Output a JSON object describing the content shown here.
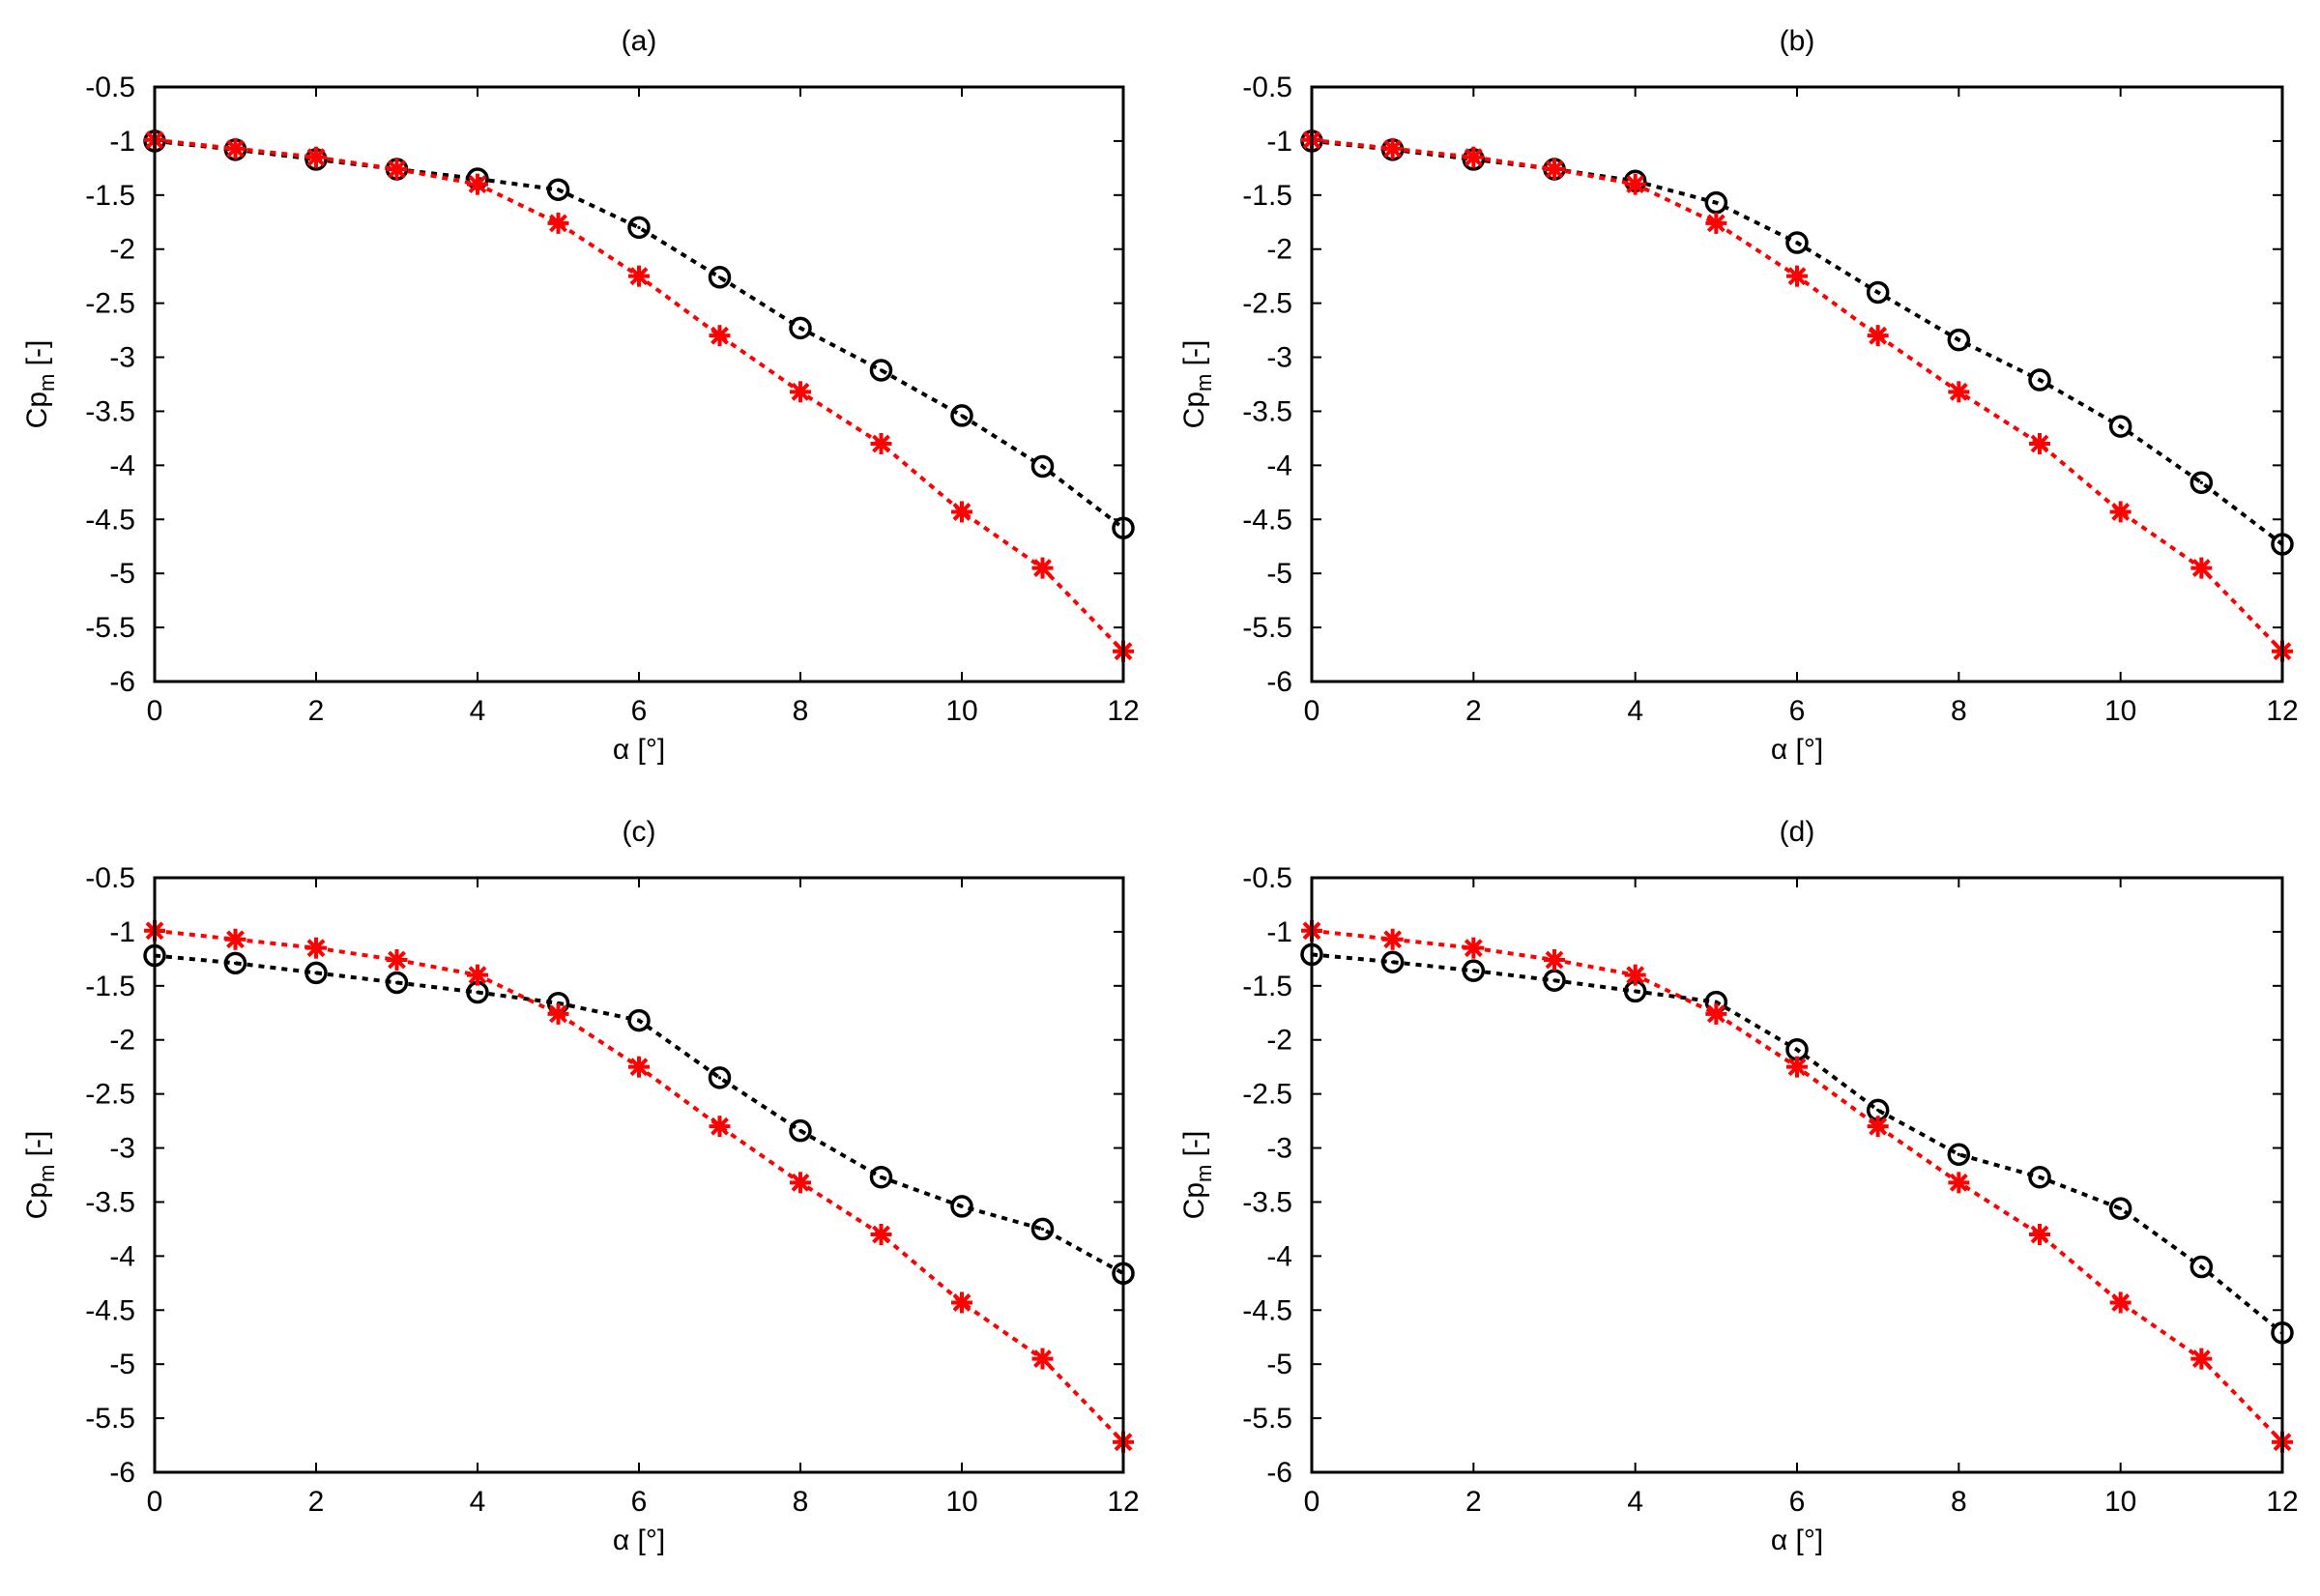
{
  "chart_data": [
    {
      "type": "line",
      "title": "(a)",
      "xlabel": "α [°]",
      "ylabel_main": "Cp",
      "ylabel_sub": "m",
      "ylabel_unit": " [-]",
      "xlim": [
        0,
        12
      ],
      "ylim": [
        -6,
        -0.5
      ],
      "xticks": [
        0,
        2,
        4,
        6,
        8,
        10,
        12
      ],
      "yticks": [
        -0.5,
        -1,
        -1.5,
        -2,
        -2.5,
        -3,
        -3.5,
        -4,
        -4.5,
        -5,
        -5.5,
        -6
      ],
      "grid": false,
      "x": [
        0,
        1,
        2,
        3,
        4,
        5,
        6,
        7,
        8,
        9,
        10,
        11,
        12
      ],
      "series": [
        {
          "marker": "circle",
          "color": "#000000",
          "values": [
            -1.0,
            -1.08,
            -1.17,
            -1.26,
            -1.35,
            -1.45,
            -1.8,
            -2.26,
            -2.73,
            -3.12,
            -3.54,
            -4.01,
            -4.58
          ]
        },
        {
          "marker": "star",
          "color": "#ff0000",
          "values": [
            -0.99,
            -1.07,
            -1.15,
            -1.26,
            -1.4,
            -1.76,
            -2.25,
            -2.8,
            -3.32,
            -3.8,
            -4.43,
            -4.95,
            -5.72
          ]
        }
      ]
    },
    {
      "type": "line",
      "title": "(b)",
      "xlabel": "α [°]",
      "ylabel_main": "Cp",
      "ylabel_sub": "m",
      "ylabel_unit": " [-]",
      "xlim": [
        0,
        12
      ],
      "ylim": [
        -6,
        -0.5
      ],
      "xticks": [
        0,
        2,
        4,
        6,
        8,
        10,
        12
      ],
      "yticks": [
        -0.5,
        -1,
        -1.5,
        -2,
        -2.5,
        -3,
        -3.5,
        -4,
        -4.5,
        -5,
        -5.5,
        -6
      ],
      "grid": false,
      "x": [
        0,
        1,
        2,
        3,
        4,
        5,
        6,
        7,
        8,
        9,
        10,
        11,
        12
      ],
      "series": [
        {
          "marker": "circle",
          "color": "#000000",
          "values": [
            -1.0,
            -1.08,
            -1.17,
            -1.26,
            -1.37,
            -1.57,
            -1.94,
            -2.4,
            -2.84,
            -3.21,
            -3.64,
            -4.16,
            -4.73
          ]
        },
        {
          "marker": "star",
          "color": "#ff0000",
          "values": [
            -0.99,
            -1.07,
            -1.15,
            -1.26,
            -1.4,
            -1.76,
            -2.25,
            -2.8,
            -3.32,
            -3.8,
            -4.43,
            -4.95,
            -5.72
          ]
        }
      ]
    },
    {
      "type": "line",
      "title": "(c)",
      "xlabel": "α [°]",
      "ylabel_main": "Cp",
      "ylabel_sub": "m",
      "ylabel_unit": " [-]",
      "xlim": [
        0,
        12
      ],
      "ylim": [
        -6,
        -0.5
      ],
      "xticks": [
        0,
        2,
        4,
        6,
        8,
        10,
        12
      ],
      "yticks": [
        -0.5,
        -1,
        -1.5,
        -2,
        -2.5,
        -3,
        -3.5,
        -4,
        -4.5,
        -5,
        -5.5,
        -6
      ],
      "grid": false,
      "x": [
        0,
        1,
        2,
        3,
        4,
        5,
        6,
        7,
        8,
        9,
        10,
        11,
        12
      ],
      "series": [
        {
          "marker": "circle",
          "color": "#000000",
          "values": [
            -1.22,
            -1.29,
            -1.38,
            -1.47,
            -1.56,
            -1.66,
            -1.82,
            -2.35,
            -2.84,
            -3.27,
            -3.54,
            -3.75,
            -4.16
          ]
        },
        {
          "marker": "star",
          "color": "#ff0000",
          "values": [
            -0.99,
            -1.07,
            -1.15,
            -1.26,
            -1.4,
            -1.76,
            -2.25,
            -2.8,
            -3.32,
            -3.8,
            -4.43,
            -4.95,
            -5.72
          ]
        }
      ]
    },
    {
      "type": "line",
      "title": "(d)",
      "xlabel": "α [°]",
      "ylabel_main": "Cp",
      "ylabel_sub": "m",
      "ylabel_unit": " [-]",
      "xlim": [
        0,
        12
      ],
      "ylim": [
        -6,
        -0.5
      ],
      "xticks": [
        0,
        2,
        4,
        6,
        8,
        10,
        12
      ],
      "yticks": [
        -0.5,
        -1,
        -1.5,
        -2,
        -2.5,
        -3,
        -3.5,
        -4,
        -4.5,
        -5,
        -5.5,
        -6
      ],
      "grid": false,
      "x": [
        0,
        1,
        2,
        3,
        4,
        5,
        6,
        7,
        8,
        9,
        10,
        11,
        12
      ],
      "series": [
        {
          "marker": "circle",
          "color": "#000000",
          "values": [
            -1.21,
            -1.28,
            -1.36,
            -1.45,
            -1.55,
            -1.65,
            -2.09,
            -2.65,
            -3.06,
            -3.27,
            -3.56,
            -4.1,
            -4.71
          ]
        },
        {
          "marker": "star",
          "color": "#ff0000",
          "values": [
            -0.99,
            -1.07,
            -1.15,
            -1.26,
            -1.4,
            -1.76,
            -2.25,
            -2.8,
            -3.32,
            -3.8,
            -4.43,
            -4.95,
            -5.72
          ]
        }
      ]
    }
  ]
}
